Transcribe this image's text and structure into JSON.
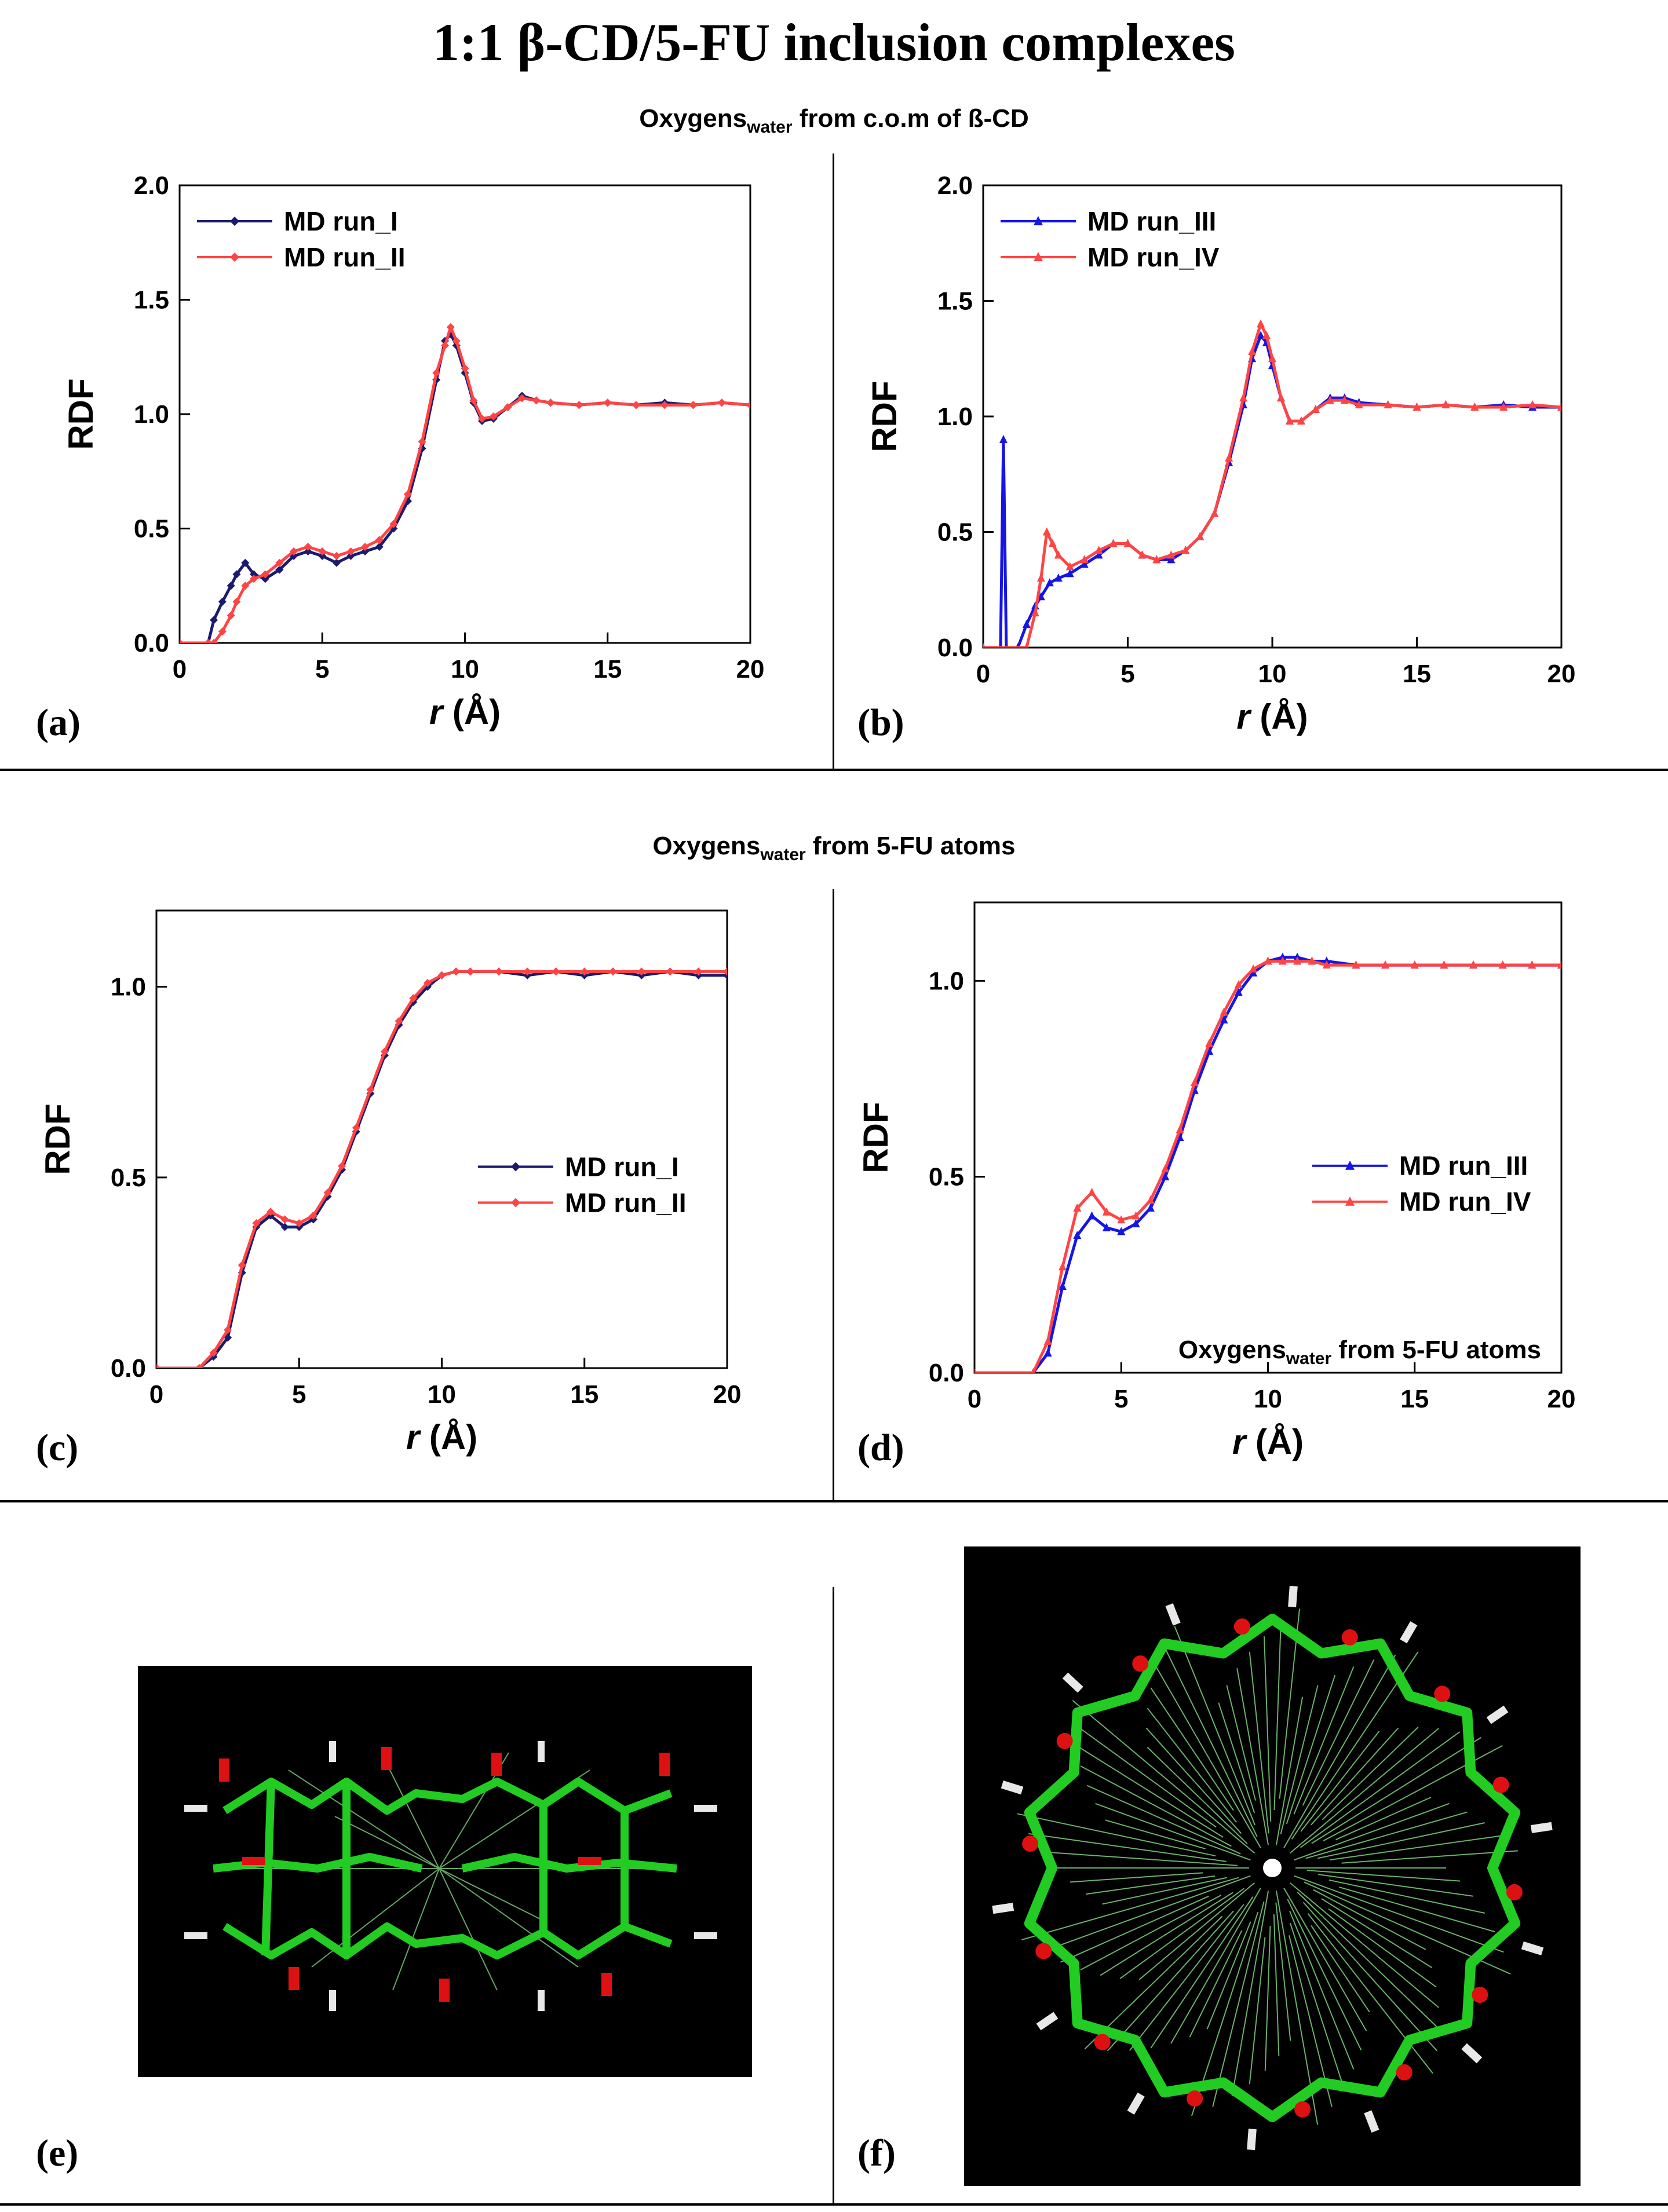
{
  "figure": {
    "title": "1:1 β-CD/5-FU inclusion complexes",
    "section1_title": {
      "main": "Oxygens",
      "sub": "water",
      "rest": " from c.o.m of ß-CD"
    },
    "section2_title": {
      "main": "Oxygens",
      "sub": "water",
      "rest": " from 5-FU atoms"
    },
    "panel_labels": [
      "(a)",
      "(b)",
      "(c)",
      "(d)",
      "(e)",
      "(f)"
    ],
    "colors": {
      "navy": "#1a1a6e",
      "blue": "#1515e6",
      "red": "#ff4444",
      "black": "#000000",
      "molecule_bg": "#000000",
      "carbon": "#22cc22",
      "oxygen": "#dd1111",
      "hydrogen": "#e8e8e8",
      "hbond": "#88dd88"
    }
  },
  "chart_data": [
    {
      "id": "a",
      "type": "line",
      "xlabel_italic": "r",
      "xlabel_rest": " (Å)",
      "ylabel": "RDF",
      "xlim": [
        0,
        20
      ],
      "ylim": [
        0,
        2.0
      ],
      "xticks": [
        "0",
        "5",
        "10",
        "15",
        "20"
      ],
      "yticks": [
        "0.0",
        "0.5",
        "1.0",
        "1.5",
        "2.0"
      ],
      "legend_position": "top-left",
      "series": [
        {
          "name": "MD run_I",
          "color": "#1a1a6e",
          "marker": "diamond",
          "x": [
            0,
            1.0,
            1.2,
            1.5,
            1.8,
            2.0,
            2.3,
            2.6,
            3.0,
            3.5,
            4.0,
            4.5,
            5.0,
            5.5,
            6.0,
            6.5,
            7.0,
            7.5,
            8.0,
            8.5,
            9.0,
            9.3,
            9.5,
            9.7,
            10.0,
            10.3,
            10.6,
            11.0,
            11.5,
            12.0,
            12.5,
            13.0,
            14.0,
            15.0,
            16.0,
            17.0,
            18.0,
            19.0,
            20.0
          ],
          "y": [
            0,
            0,
            0.1,
            0.18,
            0.25,
            0.3,
            0.35,
            0.3,
            0.28,
            0.32,
            0.38,
            0.4,
            0.38,
            0.35,
            0.38,
            0.4,
            0.42,
            0.5,
            0.62,
            0.85,
            1.15,
            1.32,
            1.35,
            1.3,
            1.18,
            1.05,
            0.97,
            0.98,
            1.03,
            1.08,
            1.06,
            1.05,
            1.04,
            1.05,
            1.04,
            1.05,
            1.04,
            1.05,
            1.04
          ]
        },
        {
          "name": "MD run_II",
          "color": "#ff4444",
          "marker": "diamond",
          "x": [
            0,
            1.0,
            1.2,
            1.5,
            1.8,
            2.0,
            2.3,
            2.6,
            3.0,
            3.5,
            4.0,
            4.5,
            5.0,
            5.5,
            6.0,
            6.5,
            7.0,
            7.5,
            8.0,
            8.5,
            9.0,
            9.3,
            9.5,
            9.7,
            10.0,
            10.3,
            10.6,
            11.0,
            11.5,
            12.0,
            12.5,
            13.0,
            14.0,
            15.0,
            16.0,
            17.0,
            18.0,
            19.0,
            20.0
          ],
          "y": [
            0,
            0,
            0,
            0.05,
            0.12,
            0.18,
            0.25,
            0.28,
            0.3,
            0.35,
            0.4,
            0.42,
            0.4,
            0.38,
            0.4,
            0.42,
            0.45,
            0.52,
            0.65,
            0.88,
            1.18,
            1.3,
            1.38,
            1.32,
            1.2,
            1.06,
            0.98,
            0.99,
            1.03,
            1.07,
            1.06,
            1.05,
            1.04,
            1.05,
            1.04,
            1.04,
            1.04,
            1.05,
            1.04
          ]
        }
      ]
    },
    {
      "id": "b",
      "type": "line",
      "xlabel_italic": "r",
      "xlabel_rest": " (Å)",
      "ylabel": "RDF",
      "xlim": [
        0,
        20
      ],
      "ylim": [
        0,
        2.0
      ],
      "xticks": [
        "0",
        "5",
        "10",
        "15",
        "20"
      ],
      "yticks": [
        "0.0",
        "0.5",
        "1.0",
        "1.5",
        "2.0"
      ],
      "legend_position": "top-left",
      "series": [
        {
          "name": "MD run_III",
          "color": "#1515e6",
          "marker": "triangle",
          "x": [
            0,
            0.6,
            0.7,
            0.8,
            1.2,
            1.5,
            1.8,
            2.0,
            2.3,
            2.6,
            3.0,
            3.5,
            4.0,
            4.5,
            5.0,
            5.5,
            6.0,
            6.5,
            7.0,
            7.5,
            8.0,
            8.5,
            9.0,
            9.3,
            9.6,
            9.8,
            10.0,
            10.3,
            10.6,
            11.0,
            11.5,
            12.0,
            12.5,
            13.0,
            14.0,
            15.0,
            16.0,
            17.0,
            18.0,
            19.0,
            20.0
          ],
          "y": [
            0,
            0,
            0.9,
            0,
            0,
            0.1,
            0.18,
            0.22,
            0.28,
            0.3,
            0.32,
            0.36,
            0.4,
            0.45,
            0.45,
            0.4,
            0.38,
            0.38,
            0.42,
            0.48,
            0.58,
            0.8,
            1.05,
            1.25,
            1.35,
            1.32,
            1.22,
            1.08,
            0.98,
            0.98,
            1.03,
            1.08,
            1.08,
            1.06,
            1.05,
            1.04,
            1.05,
            1.04,
            1.05,
            1.04,
            1.04
          ]
        },
        {
          "name": "MD run_IV",
          "color": "#ff4444",
          "marker": "triangle",
          "x": [
            0,
            1.5,
            1.8,
            2.0,
            2.2,
            2.4,
            2.6,
            3.0,
            3.5,
            4.0,
            4.5,
            5.0,
            5.5,
            6.0,
            6.5,
            7.0,
            7.5,
            8.0,
            8.5,
            9.0,
            9.3,
            9.6,
            9.8,
            10.0,
            10.3,
            10.6,
            11.0,
            11.5,
            12.0,
            12.5,
            13.0,
            14.0,
            15.0,
            16.0,
            17.0,
            18.0,
            19.0,
            20.0
          ],
          "y": [
            0,
            0,
            0.15,
            0.3,
            0.5,
            0.45,
            0.4,
            0.35,
            0.38,
            0.42,
            0.45,
            0.45,
            0.4,
            0.38,
            0.4,
            0.42,
            0.48,
            0.58,
            0.82,
            1.08,
            1.28,
            1.4,
            1.35,
            1.25,
            1.08,
            0.98,
            0.98,
            1.03,
            1.07,
            1.07,
            1.05,
            1.05,
            1.04,
            1.05,
            1.04,
            1.04,
            1.05,
            1.04
          ]
        }
      ]
    },
    {
      "id": "c",
      "type": "line",
      "xlabel_italic": "r",
      "xlabel_rest": " (Å)",
      "ylabel": "RDF",
      "xlim": [
        0,
        20
      ],
      "ylim": [
        0,
        1.2
      ],
      "xticks": [
        "0",
        "5",
        "10",
        "15",
        "20"
      ],
      "yticks": [
        "0.0",
        "0.5",
        "1.0"
      ],
      "legend_position": "center-right",
      "series": [
        {
          "name": "MD run_I",
          "color": "#1a1a6e",
          "marker": "diamond",
          "x": [
            0,
            1.5,
            2.0,
            2.5,
            3.0,
            3.5,
            4.0,
            4.5,
            5.0,
            5.5,
            6.0,
            6.5,
            7.0,
            7.5,
            8.0,
            8.5,
            9.0,
            9.5,
            10.0,
            10.5,
            11.0,
            12.0,
            13.0,
            14.0,
            15.0,
            16.0,
            17.0,
            18.0,
            19.0,
            20.0
          ],
          "y": [
            0,
            0,
            0.03,
            0.08,
            0.25,
            0.37,
            0.4,
            0.37,
            0.37,
            0.39,
            0.45,
            0.52,
            0.62,
            0.72,
            0.82,
            0.9,
            0.96,
            1.0,
            1.03,
            1.04,
            1.04,
            1.04,
            1.03,
            1.04,
            1.03,
            1.04,
            1.03,
            1.04,
            1.03,
            1.03
          ]
        },
        {
          "name": "MD run_II",
          "color": "#ff4444",
          "marker": "diamond",
          "x": [
            0,
            1.5,
            2.0,
            2.5,
            3.0,
            3.5,
            4.0,
            4.5,
            5.0,
            5.5,
            6.0,
            6.5,
            7.0,
            7.5,
            8.0,
            8.5,
            9.0,
            9.5,
            10.0,
            10.5,
            11.0,
            12.0,
            13.0,
            14.0,
            15.0,
            16.0,
            17.0,
            18.0,
            19.0,
            20.0
          ],
          "y": [
            0,
            0,
            0.04,
            0.1,
            0.27,
            0.38,
            0.41,
            0.39,
            0.38,
            0.4,
            0.46,
            0.53,
            0.63,
            0.73,
            0.83,
            0.91,
            0.97,
            1.01,
            1.03,
            1.04,
            1.04,
            1.04,
            1.04,
            1.04,
            1.04,
            1.04,
            1.04,
            1.04,
            1.04,
            1.04
          ]
        }
      ]
    },
    {
      "id": "d",
      "type": "line",
      "xlabel_italic": "r",
      "xlabel_rest": " (Å)",
      "ylabel": "RDF",
      "xlim": [
        0,
        20
      ],
      "ylim": [
        0,
        1.2
      ],
      "xticks": [
        "0",
        "5",
        "10",
        "15",
        "20"
      ],
      "yticks": [
        "0.0",
        "0.5",
        "1.0"
      ],
      "legend_position": "center-right",
      "annotation": {
        "main": "Oxygens",
        "sub": "water",
        "rest": " from 5-FU atoms"
      },
      "series": [
        {
          "name": "MD run_III",
          "color": "#1515e6",
          "marker": "triangle",
          "x": [
            0,
            2.0,
            2.5,
            3.0,
            3.5,
            4.0,
            4.5,
            5.0,
            5.5,
            6.0,
            6.5,
            7.0,
            7.5,
            8.0,
            8.5,
            9.0,
            9.5,
            10.0,
            10.5,
            11.0,
            11.5,
            12.0,
            13.0,
            14.0,
            15.0,
            16.0,
            17.0,
            18.0,
            19.0,
            20.0
          ],
          "y": [
            0,
            0,
            0.05,
            0.22,
            0.35,
            0.4,
            0.37,
            0.36,
            0.38,
            0.42,
            0.5,
            0.6,
            0.72,
            0.82,
            0.9,
            0.97,
            1.02,
            1.05,
            1.06,
            1.06,
            1.05,
            1.05,
            1.04,
            1.04,
            1.04,
            1.04,
            1.04,
            1.04,
            1.04,
            1.04
          ]
        },
        {
          "name": "MD run_IV",
          "color": "#ff4444",
          "marker": "triangle",
          "x": [
            0,
            2.0,
            2.5,
            3.0,
            3.5,
            4.0,
            4.5,
            5.0,
            5.5,
            6.0,
            6.5,
            7.0,
            7.5,
            8.0,
            8.5,
            9.0,
            9.5,
            10.0,
            10.5,
            11.0,
            11.5,
            12.0,
            13.0,
            14.0,
            15.0,
            16.0,
            17.0,
            18.0,
            19.0,
            20.0
          ],
          "y": [
            0,
            0,
            0.08,
            0.27,
            0.42,
            0.46,
            0.41,
            0.39,
            0.4,
            0.44,
            0.52,
            0.62,
            0.74,
            0.84,
            0.92,
            0.99,
            1.03,
            1.05,
            1.05,
            1.05,
            1.05,
            1.04,
            1.04,
            1.04,
            1.04,
            1.04,
            1.04,
            1.04,
            1.04,
            1.04
          ]
        }
      ]
    }
  ]
}
